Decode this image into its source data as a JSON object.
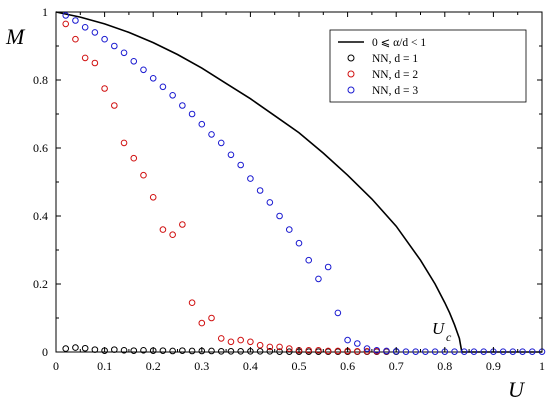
{
  "chart_data": {
    "type": "scatter",
    "title": "",
    "xlabel": "U",
    "ylabel": "M",
    "xlim": [
      0,
      1
    ],
    "ylim": [
      0,
      1
    ],
    "xticks": [
      0,
      0.1,
      0.2,
      0.3,
      0.4,
      0.5,
      0.6,
      0.7,
      0.8,
      0.9,
      1
    ],
    "xtick_labels": [
      "0",
      "0.1",
      "0.2",
      "0.3",
      "0.4",
      "0.5",
      "0.6",
      "0.7",
      "0.8",
      "0.9",
      "1"
    ],
    "yticks": [
      0,
      0.2,
      0.4,
      0.6,
      0.8,
      1
    ],
    "ytick_labels": [
      "0",
      "0.2",
      "0.4",
      "0.6",
      "0.8",
      "1"
    ],
    "grid": false,
    "legend_position": "top-right",
    "annotation": {
      "text": "U",
      "subscript": "c",
      "x": 0.835,
      "y": 0
    },
    "curve": {
      "name": "0 ⩽ α/d < 1",
      "color": "#000000",
      "x": [
        0,
        0.05,
        0.1,
        0.15,
        0.2,
        0.25,
        0.3,
        0.35,
        0.4,
        0.45,
        0.5,
        0.55,
        0.6,
        0.65,
        0.7,
        0.75,
        0.78,
        0.8,
        0.81,
        0.82,
        0.825,
        0.83,
        0.835,
        0.84,
        0.85,
        0.9,
        0.95,
        1.0
      ],
      "y": [
        1.0,
        0.985,
        0.965,
        0.94,
        0.91,
        0.875,
        0.835,
        0.79,
        0.745,
        0.695,
        0.645,
        0.585,
        0.52,
        0.45,
        0.37,
        0.27,
        0.2,
        0.145,
        0.115,
        0.08,
        0.06,
        0.04,
        0.0,
        0.0,
        0.0,
        0.0,
        0.0,
        0.0
      ]
    },
    "series": [
      {
        "name": "NN, d = 1",
        "color": "#000000",
        "x": [
          0.02,
          0.04,
          0.06,
          0.08,
          0.1,
          0.12,
          0.14,
          0.16,
          0.18,
          0.2,
          0.22,
          0.24,
          0.26,
          0.28,
          0.3,
          0.32,
          0.34,
          0.36,
          0.38,
          0.4,
          0.42,
          0.44,
          0.46,
          0.48,
          0.5,
          0.52,
          0.54,
          0.56,
          0.58,
          0.6,
          0.62,
          0.64,
          0.66,
          0.68,
          0.7
        ],
        "y": [
          0.01,
          0.013,
          0.011,
          0.007,
          0.004,
          0.007,
          0.005,
          0.004,
          0.005,
          0.004,
          0.004,
          0.003,
          0.004,
          0.003,
          0.003,
          0.003,
          0.002,
          0.002,
          0.002,
          0.002,
          0.002,
          0.002,
          0.001,
          0.001,
          0.001,
          0.001,
          0.001,
          0.001,
          0.001,
          0.001,
          0.001,
          0.001,
          0.001,
          0.001,
          0.001
        ]
      },
      {
        "name": "NN, d = 2",
        "color": "#d01010",
        "x": [
          0.02,
          0.04,
          0.06,
          0.08,
          0.1,
          0.12,
          0.14,
          0.16,
          0.18,
          0.2,
          0.22,
          0.24,
          0.26,
          0.28,
          0.3,
          0.32,
          0.34,
          0.36,
          0.38,
          0.4,
          0.42,
          0.44,
          0.46,
          0.48,
          0.5,
          0.52,
          0.54,
          0.56,
          0.58,
          0.6,
          0.62,
          0.64,
          0.66,
          0.68
        ],
        "y": [
          0.965,
          0.92,
          0.865,
          0.85,
          0.775,
          0.725,
          0.615,
          0.57,
          0.52,
          0.455,
          0.36,
          0.345,
          0.375,
          0.145,
          0.085,
          0.1,
          0.04,
          0.03,
          0.035,
          0.03,
          0.02,
          0.015,
          0.015,
          0.01,
          0.005,
          0.005,
          0.005,
          0.003,
          0.003,
          0.003,
          0.002,
          0.002,
          0.002,
          0.002
        ]
      },
      {
        "name": "NN, d = 3",
        "color": "#1a1ad0",
        "x": [
          0.02,
          0.04,
          0.06,
          0.08,
          0.1,
          0.12,
          0.14,
          0.16,
          0.18,
          0.2,
          0.22,
          0.24,
          0.26,
          0.28,
          0.3,
          0.32,
          0.34,
          0.36,
          0.38,
          0.4,
          0.42,
          0.44,
          0.46,
          0.48,
          0.5,
          0.52,
          0.54,
          0.56,
          0.58,
          0.6,
          0.62,
          0.64,
          0.66,
          0.68,
          0.7,
          0.72,
          0.74,
          0.76,
          0.78,
          0.8,
          0.82,
          0.84,
          0.86,
          0.88,
          0.9,
          0.92,
          0.94,
          0.96,
          0.98,
          1.0
        ],
        "y": [
          0.99,
          0.975,
          0.955,
          0.94,
          0.92,
          0.9,
          0.88,
          0.855,
          0.83,
          0.805,
          0.78,
          0.755,
          0.725,
          0.7,
          0.67,
          0.64,
          0.615,
          0.58,
          0.55,
          0.51,
          0.475,
          0.44,
          0.4,
          0.36,
          0.32,
          0.27,
          0.215,
          0.25,
          0.115,
          0.035,
          0.025,
          0.01,
          0.005,
          0.003,
          0.002,
          0.001,
          0.001,
          0.001,
          0.001,
          0.001,
          0.001,
          0.001,
          0.001,
          0.001,
          0.001,
          0.001,
          0.001,
          0.001,
          0.001,
          0.001
        ]
      }
    ]
  }
}
